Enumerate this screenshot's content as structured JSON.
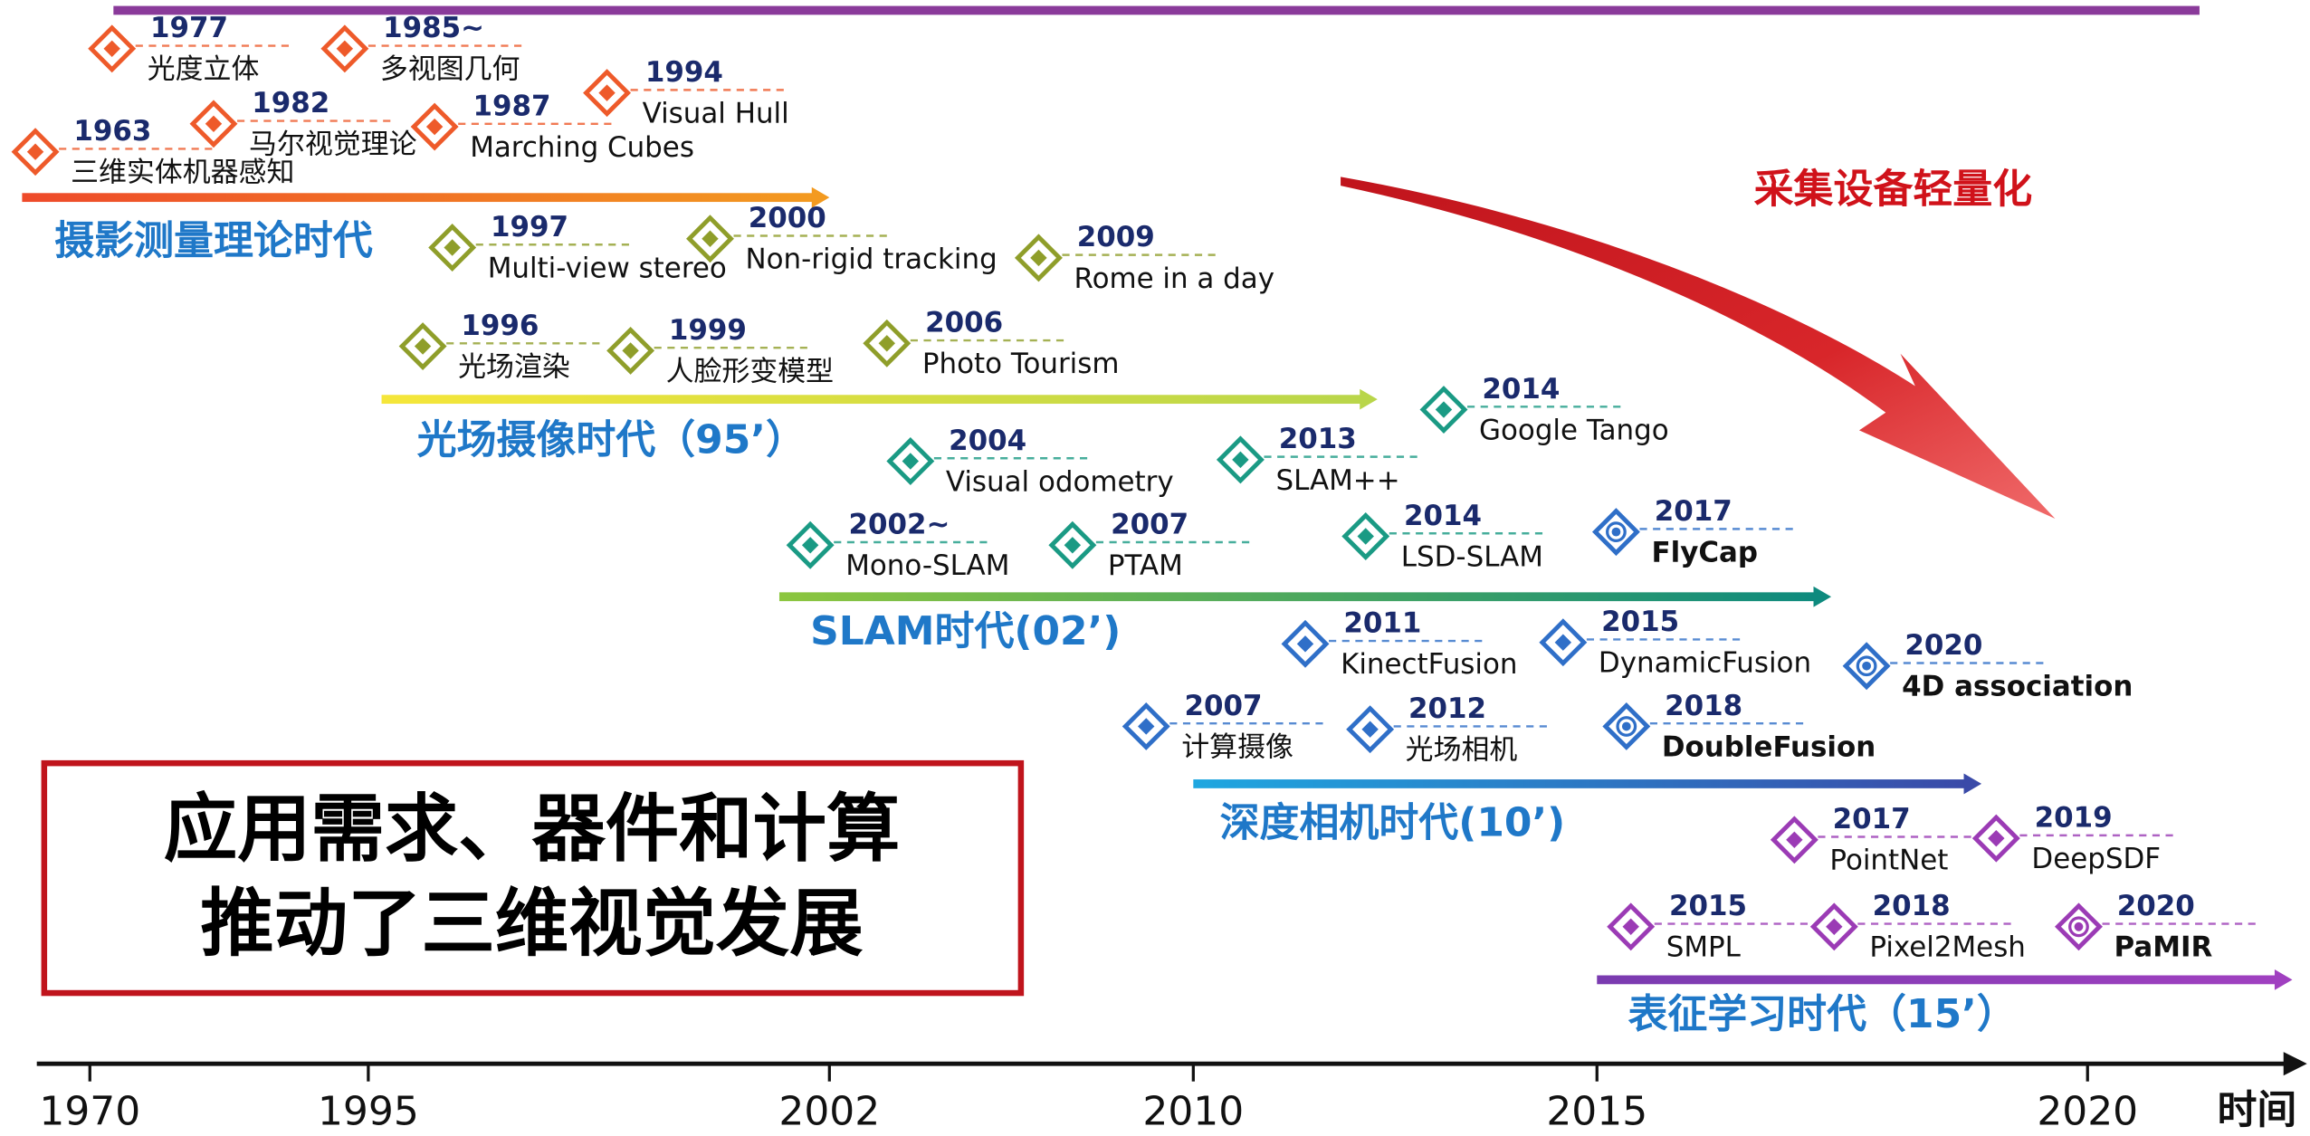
{
  "top_callout": "采集设备轻量化",
  "summary_box": {
    "lines": [
      "应用需求、器件和计算",
      "推动了三维视觉发展"
    ]
  },
  "eras": [
    {
      "label": "摄影测量理论时代"
    },
    {
      "label": "光场摄像时代（95’）"
    },
    {
      "label": "SLAM时代(02’)"
    },
    {
      "label": "深度相机时代(10’)"
    },
    {
      "label": "表征学习时代（15’）"
    }
  ],
  "milestones": [
    {
      "year": "1977",
      "label": "光度立体"
    },
    {
      "year": "1985~",
      "label": "多视图几何"
    },
    {
      "year": "1994",
      "label": "Visual Hull"
    },
    {
      "year": "1963",
      "label": "三维实体机器感知"
    },
    {
      "year": "1982",
      "label": "马尔视觉理论"
    },
    {
      "year": "1987",
      "label": "Marching Cubes"
    },
    {
      "year": "1997",
      "label": "Multi-view stereo"
    },
    {
      "year": "2000",
      "label": "Non-rigid tracking"
    },
    {
      "year": "2009",
      "label": "Rome in a day"
    },
    {
      "year": "1996",
      "label": "光场渲染"
    },
    {
      "year": "1999",
      "label": "人脸形变模型"
    },
    {
      "year": "2006",
      "label": "Photo Tourism"
    },
    {
      "year": "2014",
      "label": "Google Tango"
    },
    {
      "year": "2004",
      "label": "Visual odometry"
    },
    {
      "year": "2013",
      "label": "SLAM++"
    },
    {
      "year": "2002~",
      "label": "Mono-SLAM"
    },
    {
      "year": "2007",
      "label": "PTAM"
    },
    {
      "year": "2014",
      "label": "LSD-SLAM"
    },
    {
      "year": "2017",
      "label": "FlyCap"
    },
    {
      "year": "2011",
      "label": "KinectFusion"
    },
    {
      "year": "2015",
      "label": "DynamicFusion"
    },
    {
      "year": "2020",
      "label": "4D association"
    },
    {
      "year": "2007",
      "label": "计算摄像"
    },
    {
      "year": "2012",
      "label": "光场相机"
    },
    {
      "year": "2018",
      "label": "DoubleFusion"
    },
    {
      "year": "2017",
      "label": "PointNet"
    },
    {
      "year": "2019",
      "label": "DeepSDF"
    },
    {
      "year": "2015",
      "label": "SMPL"
    },
    {
      "year": "2018",
      "label": "Pixel2Mesh"
    },
    {
      "year": "2020",
      "label": "PaMIR"
    }
  ],
  "time_axis": {
    "ticks": [
      "1970",
      "1995",
      "2002",
      "2010",
      "2015",
      "2020"
    ],
    "label": "时间"
  }
}
